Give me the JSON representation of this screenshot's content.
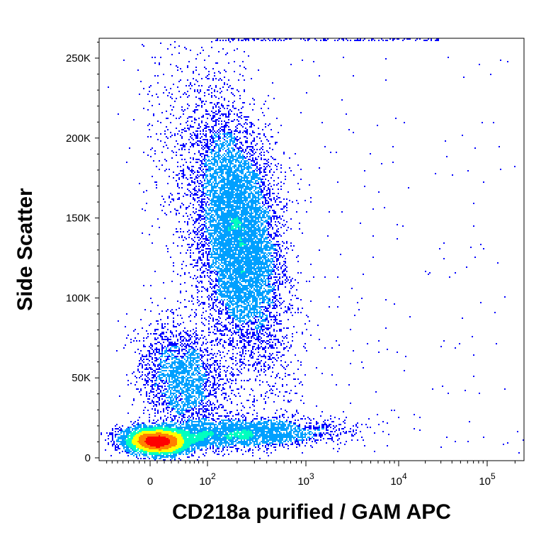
{
  "chart_data": {
    "type": "scatter",
    "title": "",
    "xlabel": "CD218a purified / GAM APC",
    "ylabel": "Side Scatter",
    "x_scale": "biexponential",
    "y_scale": "linear",
    "xlim": [
      -90,
      250000
    ],
    "ylim": [
      -2000,
      262143
    ],
    "density_coloring": true,
    "colormap": [
      "#0000ff",
      "#00a0ff",
      "#00ffc0",
      "#ffff00",
      "#ff8000",
      "#ff0000"
    ],
    "x_ticks": [
      {
        "value": 0,
        "label": "0",
        "exp": ""
      },
      {
        "value": 100,
        "label": "10",
        "exp": "2"
      },
      {
        "value": 1000,
        "label": "10",
        "exp": "3"
      },
      {
        "value": 10000,
        "label": "10",
        "exp": "4"
      },
      {
        "value": 100000,
        "label": "10",
        "exp": "5"
      }
    ],
    "y_ticks": [
      {
        "value": 0,
        "label": "0"
      },
      {
        "value": 50000,
        "label": "50K"
      },
      {
        "value": 100000,
        "label": "100K"
      },
      {
        "value": 150000,
        "label": "150K"
      },
      {
        "value": 200000,
        "label": "200K"
      },
      {
        "value": 250000,
        "label": "250K"
      }
    ],
    "populations": [
      {
        "name": "",
        "center_x": 15,
        "center_y": 12000,
        "density_peak": "high"
      },
      {
        "name": "",
        "center_x": 220,
        "center_y": 138000,
        "density_peak": "high"
      },
      {
        "name": "",
        "center_x": 60,
        "center_y": 50000,
        "density_peak": "medium"
      },
      {
        "name": "",
        "center_x": 300,
        "center_y": 18000,
        "density_peak": "medium"
      }
    ]
  }
}
